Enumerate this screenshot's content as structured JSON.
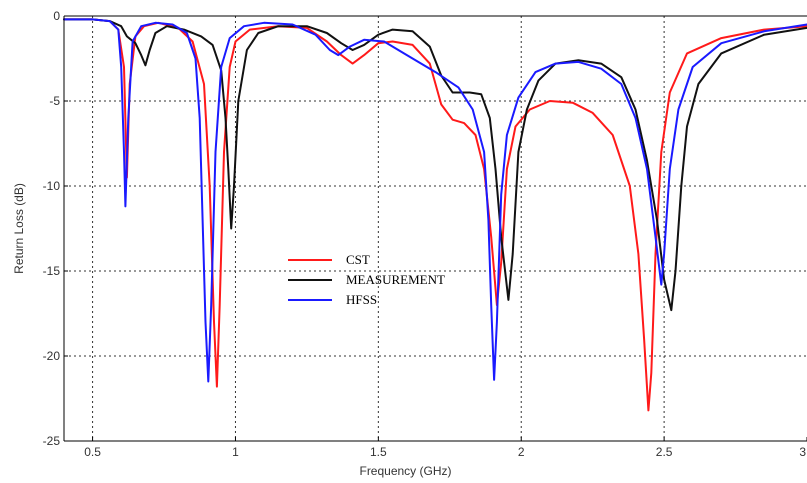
{
  "chart_data": {
    "type": "line",
    "title": "",
    "xlabel": "Frequency (GHz)",
    "ylabel": "Return Loss (dB)",
    "xlim": [
      0.4,
      3.0
    ],
    "ylim": [
      -25,
      0
    ],
    "xticks": [
      0.5,
      1,
      1.5,
      2,
      2.5,
      3
    ],
    "xtick_labels": [
      "0.5",
      "1",
      "1.5",
      "2",
      "2.5",
      "3"
    ],
    "yticks": [
      0,
      -5,
      -10,
      -15,
      -20,
      -25
    ],
    "ytick_labels": [
      "0",
      "-5",
      "-10",
      "-15",
      "-20",
      "-25"
    ],
    "grid": true,
    "legend_position": "center-left",
    "series": [
      {
        "name": "CST",
        "color": "#ff1a1a",
        "points": [
          [
            0.4,
            -0.2
          ],
          [
            0.5,
            -0.2
          ],
          [
            0.56,
            -0.3
          ],
          [
            0.59,
            -0.8
          ],
          [
            0.61,
            -3
          ],
          [
            0.62,
            -9.5
          ],
          [
            0.63,
            -4
          ],
          [
            0.65,
            -1.2
          ],
          [
            0.68,
            -0.6
          ],
          [
            0.73,
            -0.4
          ],
          [
            0.8,
            -0.7
          ],
          [
            0.85,
            -1.5
          ],
          [
            0.89,
            -4
          ],
          [
            0.91,
            -10
          ],
          [
            0.925,
            -18
          ],
          [
            0.935,
            -21.8
          ],
          [
            0.945,
            -17
          ],
          [
            0.96,
            -8
          ],
          [
            0.98,
            -3
          ],
          [
            1.0,
            -1.5
          ],
          [
            1.05,
            -0.8
          ],
          [
            1.15,
            -0.6
          ],
          [
            1.25,
            -0.7
          ],
          [
            1.32,
            -1.5
          ],
          [
            1.37,
            -2.3
          ],
          [
            1.41,
            -2.8
          ],
          [
            1.45,
            -2.3
          ],
          [
            1.5,
            -1.6
          ],
          [
            1.55,
            -1.5
          ],
          [
            1.62,
            -1.7
          ],
          [
            1.68,
            -2.8
          ],
          [
            1.72,
            -5.2
          ],
          [
            1.76,
            -6.1
          ],
          [
            1.8,
            -6.3
          ],
          [
            1.84,
            -7
          ],
          [
            1.87,
            -9
          ],
          [
            1.895,
            -13
          ],
          [
            1.915,
            -17
          ],
          [
            1.93,
            -14.5
          ],
          [
            1.95,
            -9
          ],
          [
            1.98,
            -6.5
          ],
          [
            2.03,
            -5.5
          ],
          [
            2.1,
            -5
          ],
          [
            2.18,
            -5.1
          ],
          [
            2.25,
            -5.7
          ],
          [
            2.32,
            -7
          ],
          [
            2.38,
            -10
          ],
          [
            2.41,
            -14
          ],
          [
            2.43,
            -19
          ],
          [
            2.445,
            -23.2
          ],
          [
            2.455,
            -21
          ],
          [
            2.47,
            -14
          ],
          [
            2.49,
            -8
          ],
          [
            2.52,
            -4.5
          ],
          [
            2.58,
            -2.2
          ],
          [
            2.7,
            -1.3
          ],
          [
            2.85,
            -0.8
          ],
          [
            3.0,
            -0.6
          ]
        ]
      },
      {
        "name": "MEASUREMENT",
        "color": "#111111",
        "points": [
          [
            0.4,
            -0.2
          ],
          [
            0.5,
            -0.2
          ],
          [
            0.56,
            -0.3
          ],
          [
            0.6,
            -0.6
          ],
          [
            0.62,
            -1.2
          ],
          [
            0.65,
            -1.6
          ],
          [
            0.67,
            -2.3
          ],
          [
            0.685,
            -2.9
          ],
          [
            0.7,
            -2.0
          ],
          [
            0.72,
            -1.0
          ],
          [
            0.76,
            -0.6
          ],
          [
            0.82,
            -0.8
          ],
          [
            0.88,
            -1.2
          ],
          [
            0.92,
            -1.7
          ],
          [
            0.95,
            -3.2
          ],
          [
            0.965,
            -6
          ],
          [
            0.975,
            -9
          ],
          [
            0.985,
            -12.5
          ],
          [
            0.995,
            -10
          ],
          [
            1.01,
            -5
          ],
          [
            1.04,
            -2
          ],
          [
            1.08,
            -1
          ],
          [
            1.15,
            -0.6
          ],
          [
            1.25,
            -0.6
          ],
          [
            1.32,
            -1
          ],
          [
            1.37,
            -1.6
          ],
          [
            1.41,
            -2
          ],
          [
            1.45,
            -1.7
          ],
          [
            1.5,
            -1.1
          ],
          [
            1.55,
            -0.8
          ],
          [
            1.62,
            -0.9
          ],
          [
            1.68,
            -1.8
          ],
          [
            1.72,
            -3.5
          ],
          [
            1.76,
            -4.5
          ],
          [
            1.82,
            -4.5
          ],
          [
            1.86,
            -4.6
          ],
          [
            1.89,
            -6
          ],
          [
            1.91,
            -9
          ],
          [
            1.93,
            -13
          ],
          [
            1.955,
            -16.7
          ],
          [
            1.97,
            -14
          ],
          [
            1.99,
            -8
          ],
          [
            2.02,
            -5.5
          ],
          [
            2.06,
            -3.8
          ],
          [
            2.12,
            -2.8
          ],
          [
            2.2,
            -2.6
          ],
          [
            2.28,
            -2.8
          ],
          [
            2.35,
            -3.6
          ],
          [
            2.4,
            -5.5
          ],
          [
            2.44,
            -8.5
          ],
          [
            2.475,
            -12
          ],
          [
            2.5,
            -15.5
          ],
          [
            2.525,
            -17.3
          ],
          [
            2.54,
            -15
          ],
          [
            2.56,
            -10
          ],
          [
            2.58,
            -6.5
          ],
          [
            2.62,
            -4
          ],
          [
            2.7,
            -2.2
          ],
          [
            2.85,
            -1.1
          ],
          [
            3.0,
            -0.7
          ]
        ]
      },
      {
        "name": "HFSS",
        "color": "#1a1aff",
        "points": [
          [
            0.4,
            -0.2
          ],
          [
            0.5,
            -0.2
          ],
          [
            0.56,
            -0.3
          ],
          [
            0.59,
            -0.8
          ],
          [
            0.6,
            -3
          ],
          [
            0.61,
            -8
          ],
          [
            0.615,
            -11.2
          ],
          [
            0.625,
            -6
          ],
          [
            0.64,
            -1.5
          ],
          [
            0.67,
            -0.6
          ],
          [
            0.72,
            -0.4
          ],
          [
            0.78,
            -0.5
          ],
          [
            0.83,
            -1
          ],
          [
            0.86,
            -2.5
          ],
          [
            0.875,
            -6
          ],
          [
            0.885,
            -12
          ],
          [
            0.895,
            -18
          ],
          [
            0.905,
            -21.5
          ],
          [
            0.915,
            -17
          ],
          [
            0.93,
            -8
          ],
          [
            0.95,
            -3
          ],
          [
            0.98,
            -1.3
          ],
          [
            1.03,
            -0.6
          ],
          [
            1.1,
            -0.4
          ],
          [
            1.2,
            -0.5
          ],
          [
            1.28,
            -1.1
          ],
          [
            1.33,
            -2
          ],
          [
            1.36,
            -2.3
          ],
          [
            1.4,
            -1.8
          ],
          [
            1.45,
            -1.4
          ],
          [
            1.52,
            -1.5
          ],
          [
            1.6,
            -2.3
          ],
          [
            1.7,
            -3.3
          ],
          [
            1.78,
            -4.2
          ],
          [
            1.83,
            -5.5
          ],
          [
            1.87,
            -8
          ],
          [
            1.885,
            -12
          ],
          [
            1.895,
            -17
          ],
          [
            1.905,
            -21.4
          ],
          [
            1.915,
            -18
          ],
          [
            1.93,
            -10.5
          ],
          [
            1.95,
            -7
          ],
          [
            1.99,
            -4.8
          ],
          [
            2.05,
            -3.3
          ],
          [
            2.12,
            -2.8
          ],
          [
            2.2,
            -2.7
          ],
          [
            2.28,
            -3.1
          ],
          [
            2.35,
            -4
          ],
          [
            2.4,
            -6
          ],
          [
            2.44,
            -9
          ],
          [
            2.47,
            -13
          ],
          [
            2.49,
            -15.8
          ],
          [
            2.5,
            -14
          ],
          [
            2.52,
            -9
          ],
          [
            2.55,
            -5.5
          ],
          [
            2.6,
            -3
          ],
          [
            2.7,
            -1.6
          ],
          [
            2.85,
            -0.9
          ],
          [
            3.0,
            -0.5
          ]
        ]
      }
    ]
  }
}
